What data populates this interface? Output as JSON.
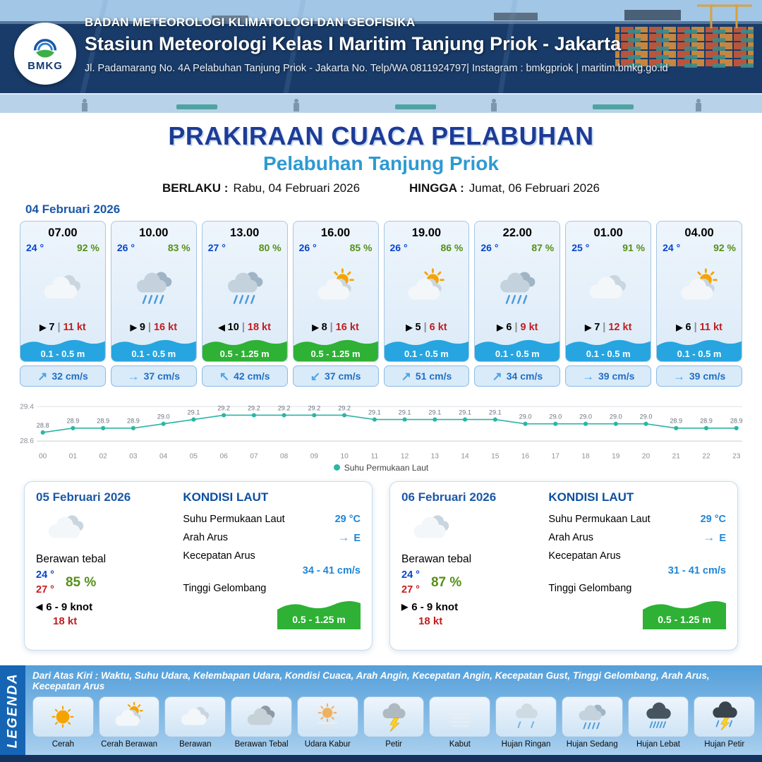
{
  "header": {
    "logo_text": "BMKG",
    "org": "BADAN METEOROLOGI KLIMATOLOGI DAN GEOFISIKA",
    "station": "Stasiun Meteorologi Kelas I Maritim Tanjung Priok - Jakarta",
    "address": "Jl. Padamarang No. 4A Pelabuhan Tanjung Priok - Jakarta No. Telp/WA 0811924797| Instagram : bmkgpriok | maritim.bmkg.go.id"
  },
  "title": {
    "main": "PRAKIRAAN CUACA PELABUHAN",
    "sub": "Pelabuhan Tanjung Priok",
    "berlaku_label": "BERLAKU :",
    "berlaku_value": "Rabu, 04 Februari 2026",
    "hingga_label": "HINGGA :",
    "hingga_value": "Jumat, 06 Februari 2026"
  },
  "forecast_date": "04 Februari 2026",
  "misc": {
    "pipe": "|"
  },
  "hourly": [
    {
      "time": "07.00",
      "temp": "24 °",
      "humidity": "92 %",
      "icon": "cloudy",
      "wind_dir": "▶",
      "wind": "7",
      "gust": "11 kt",
      "wave": "0.1 - 0.5 m",
      "wave_color": "#26a5e0",
      "current_dir": "↗",
      "current": "32 cm/s"
    },
    {
      "time": "10.00",
      "temp": "26 °",
      "humidity": "83 %",
      "icon": "rain",
      "wind_dir": "▶",
      "wind": "9",
      "gust": "16 kt",
      "wave": "0.1 - 0.5 m",
      "wave_color": "#26a5e0",
      "current_dir": "→",
      "current": "37 cm/s"
    },
    {
      "time": "13.00",
      "temp": "27 °",
      "humidity": "80 %",
      "icon": "rain",
      "wind_dir": "◀",
      "wind": "10",
      "gust": "18 kt",
      "wave": "0.5 - 1.25 m",
      "wave_color": "#2eb135",
      "current_dir": "↖",
      "current": "42 cm/s"
    },
    {
      "time": "16.00",
      "temp": "26 °",
      "humidity": "85 %",
      "icon": "partly-cloudy",
      "wind_dir": "▶",
      "wind": "8",
      "gust": "16 kt",
      "wave": "0.5 - 1.25 m",
      "wave_color": "#2eb135",
      "current_dir": "↙",
      "current": "37 cm/s"
    },
    {
      "time": "19.00",
      "temp": "26 °",
      "humidity": "86 %",
      "icon": "partly-cloudy",
      "wind_dir": "▶",
      "wind": "5",
      "gust": "6 kt",
      "wave": "0.1 - 0.5 m",
      "wave_color": "#26a5e0",
      "current_dir": "↗",
      "current": "51 cm/s"
    },
    {
      "time": "22.00",
      "temp": "26 °",
      "humidity": "87 %",
      "icon": "rain",
      "wind_dir": "▶",
      "wind": "6",
      "gust": "9 kt",
      "wave": "0.1 - 0.5 m",
      "wave_color": "#26a5e0",
      "current_dir": "↗",
      "current": "34 cm/s"
    },
    {
      "time": "01.00",
      "temp": "25 °",
      "humidity": "91 %",
      "icon": "cloudy",
      "wind_dir": "▶",
      "wind": "7",
      "gust": "12 kt",
      "wave": "0.1 - 0.5 m",
      "wave_color": "#26a5e0",
      "current_dir": "→",
      "current": "39 cm/s"
    },
    {
      "time": "04.00",
      "temp": "24 °",
      "humidity": "92 %",
      "icon": "partly-cloudy",
      "wind_dir": "▶",
      "wind": "6",
      "gust": "11 kt",
      "wave": "0.1 - 0.5 m",
      "wave_color": "#26a5e0",
      "current_dir": "→",
      "current": "39 cm/s"
    }
  ],
  "chart_data": {
    "type": "line",
    "legend_label": "Suhu Permukaan Laut",
    "x": [
      "00",
      "01",
      "02",
      "03",
      "04",
      "05",
      "06",
      "07",
      "08",
      "09",
      "10",
      "11",
      "12",
      "13",
      "14",
      "15",
      "16",
      "17",
      "18",
      "19",
      "20",
      "21",
      "22",
      "23"
    ],
    "values": [
      28.8,
      28.9,
      28.9,
      28.9,
      29.0,
      29.1,
      29.2,
      29.2,
      29.2,
      29.2,
      29.2,
      29.1,
      29.1,
      29.1,
      29.1,
      29.1,
      29.0,
      29.0,
      29.0,
      29.0,
      29.0,
      28.9,
      28.9,
      28.9
    ],
    "ylim": [
      28.6,
      29.4
    ],
    "color": "#2bb5a5",
    "grid": "horizontal-only",
    "legend_position": "bottom"
  },
  "daily": [
    {
      "date": "05 Februari 2026",
      "icon": "cloudy",
      "condition": "Berawan tebal",
      "temp_min": "24 °",
      "temp_max": "27 °",
      "humidity": "85 %",
      "wind_dir": "◀",
      "wind": "6 - 9 knot",
      "gust": "18 kt",
      "sea": {
        "title": "KONDISI LAUT",
        "sst_label": "Suhu Permukaan Laut",
        "sst": "29 °C",
        "current_dir_label": "Arah Arus",
        "current_dir_arrow": "→",
        "current_dir": "E",
        "current_speed_label": "Kecepatan Arus",
        "current_speed": "34 - 41 cm/s",
        "wave_label": "Tinggi Gelombang",
        "wave": "0.5 - 1.25 m",
        "wave_color": "#2eb135"
      }
    },
    {
      "date": "06 Februari 2026",
      "icon": "cloudy",
      "condition": "Berawan tebal",
      "temp_min": "24 °",
      "temp_max": "27 °",
      "humidity": "87 %",
      "wind_dir": "▶",
      "wind": "6 - 9 knot",
      "gust": "18 kt",
      "sea": {
        "title": "KONDISI LAUT",
        "sst_label": "Suhu Permukaan Laut",
        "sst": "29 °C",
        "current_dir_label": "Arah Arus",
        "current_dir_arrow": "→",
        "current_dir": "E",
        "current_speed_label": "Kecepatan Arus",
        "current_speed": "31 - 41 cm/s",
        "wave_label": "Tinggi Gelombang",
        "wave": "0.5 - 1.25 m",
        "wave_color": "#2eb135"
      }
    }
  ],
  "legend": {
    "title": "LEGENDA",
    "note": "Dari Atas Kiri : Waktu, Suhu Udara, Kelembapan Udara, Kondisi Cuaca, Arah Angin, Kecepatan Angin, Kecepatan Gust, Tinggi Gelombang, Arah Arus, Kecepatan Arus",
    "items": [
      {
        "label": "Cerah",
        "icon": "sun"
      },
      {
        "label": "Cerah Berawan",
        "icon": "partly-cloudy"
      },
      {
        "label": "Berawan",
        "icon": "cloudy"
      },
      {
        "label": "Berawan Tebal",
        "icon": "thick-cloud"
      },
      {
        "label": "Udara Kabur",
        "icon": "hazy"
      },
      {
        "label": "Petir",
        "icon": "thunder"
      },
      {
        "label": "Kabut",
        "icon": "fog"
      },
      {
        "label": "Hujan Ringan",
        "icon": "rain-light"
      },
      {
        "label": "Hujan Sedang",
        "icon": "rain"
      },
      {
        "label": "Hujan Lebat",
        "icon": "rain-heavy"
      },
      {
        "label": "Hujan Petir",
        "icon": "thunder-rain"
      }
    ]
  }
}
